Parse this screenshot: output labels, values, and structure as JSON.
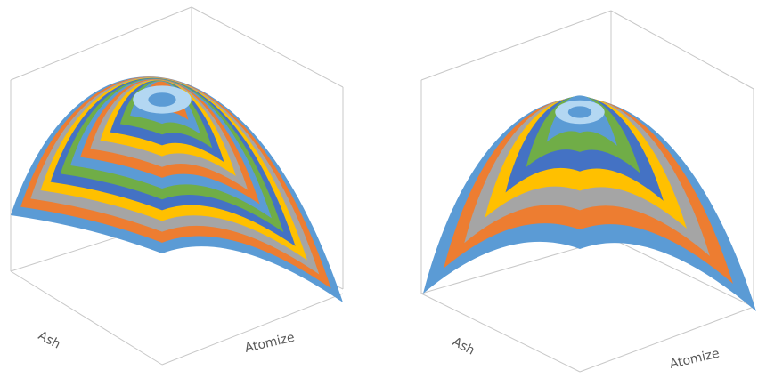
{
  "chart_data": [
    {
      "type": "surface",
      "surface_shape": "dome",
      "xlabel": "Ash",
      "ylabel": "Atomize",
      "title": "",
      "grid": false,
      "band_colors": [
        "#5b9bd5",
        "#ed7d31",
        "#a5a5a5",
        "#ffc000",
        "#4472c4",
        "#70ad47"
      ],
      "top_color": "#b3d7f2",
      "bands": 14
    },
    {
      "type": "surface",
      "surface_shape": "dome",
      "xlabel": "Ash",
      "ylabel": "Atomize",
      "title": "",
      "grid": false,
      "band_colors": [
        "#5b9bd5",
        "#ed7d31",
        "#a5a5a5",
        "#ffc000",
        "#4472c4",
        "#70ad47"
      ],
      "top_color": "#b3d7f2",
      "bands": 7
    }
  ]
}
